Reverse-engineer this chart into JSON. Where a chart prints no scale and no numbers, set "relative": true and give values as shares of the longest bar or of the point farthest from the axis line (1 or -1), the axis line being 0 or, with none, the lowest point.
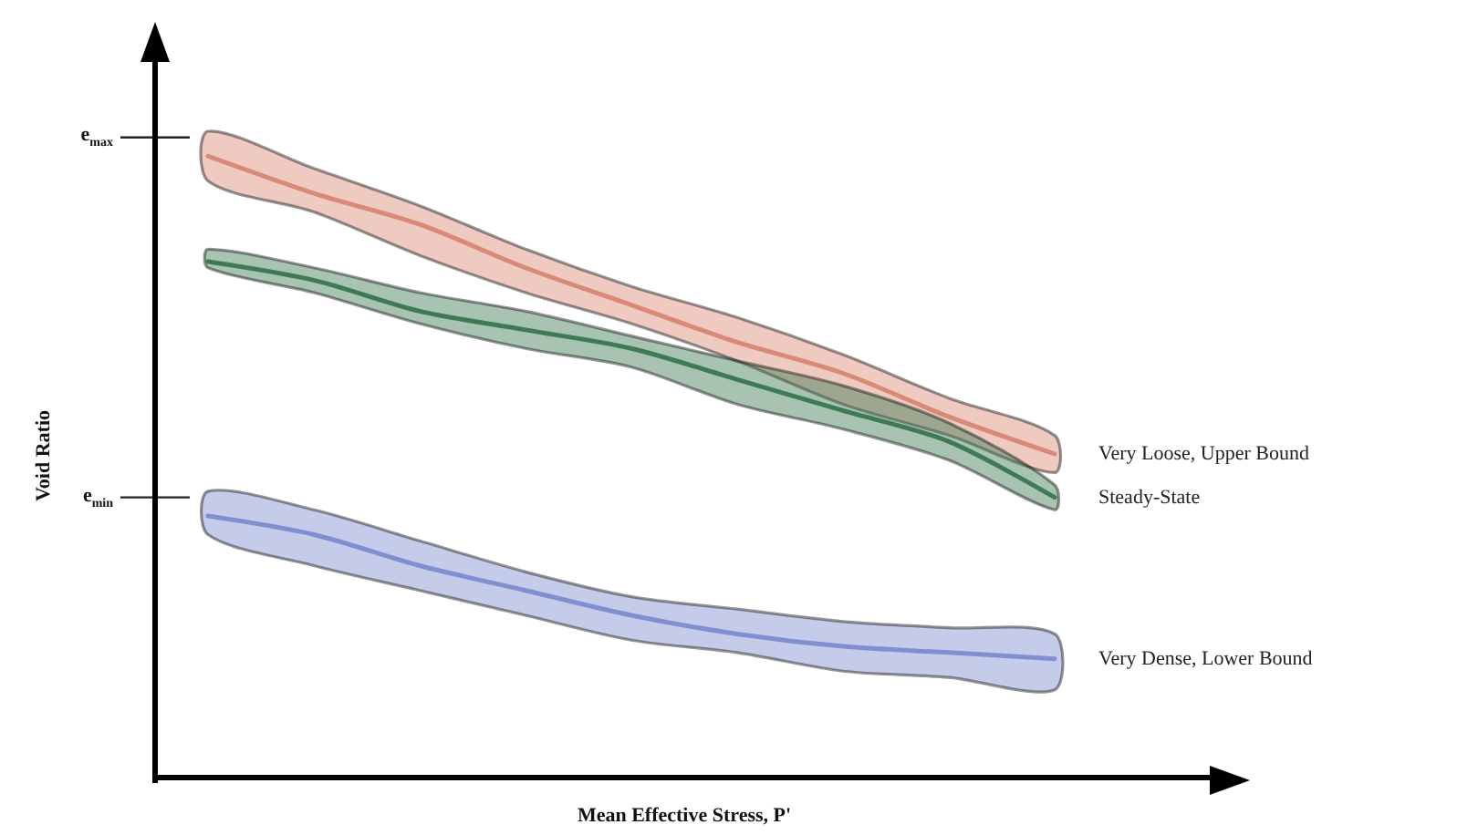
{
  "chart_data": {
    "type": "line",
    "relative": true,
    "xlabel": "Mean Effective Stress, P'",
    "ylabel": "Void Ratio",
    "categories": [
      null,
      null,
      null,
      null,
      null,
      null,
      null,
      null,
      null,
      null
    ],
    "series": [
      {
        "name": "Very Loose, Upper Bound",
        "color": "#d98a76",
        "values": [
          1,
          0.94,
          0.89,
          0.82,
          0.76,
          0.7,
          0.65,
          0.58,
          0.52,
          null
        ],
        "lower": [
          0.96,
          0.91,
          0.84,
          0.78,
          0.73,
          0.67,
          0.6,
          0.55,
          0.49,
          null
        ],
        "upper": [
          1.04,
          0.98,
          0.92,
          0.85,
          0.79,
          0.74,
          0.68,
          0.61,
          0.55,
          null
        ]
      },
      {
        "name": "Steady-State",
        "color": "#3f7a55",
        "values": [
          0.83,
          0.8,
          0.75,
          0.72,
          0.69,
          0.64,
          0.59,
          0.54,
          0.45,
          null
        ],
        "lower": [
          0.82,
          0.78,
          0.73,
          0.69,
          0.66,
          0.6,
          0.56,
          0.51,
          0.43,
          null
        ],
        "upper": [
          0.85,
          0.82,
          0.78,
          0.75,
          0.71,
          0.67,
          0.63,
          0.57,
          0.47,
          null
        ]
      },
      {
        "name": "Very Dense, Lower Bound",
        "color": "#7f8fcf",
        "values": [
          0.42,
          0.39,
          0.34,
          0.3,
          0.26,
          0.23,
          0.21,
          0.2,
          0.19,
          null
        ],
        "lower": [
          0.39,
          0.34,
          0.3,
          0.26,
          0.22,
          0.2,
          0.17,
          0.16,
          0.14,
          null
        ],
        "upper": [
          0.46,
          0.43,
          0.38,
          0.33,
          0.29,
          0.27,
          0.25,
          0.24,
          0.23,
          null
        ]
      }
    ],
    "ref_lines": [
      {
        "axis": "y",
        "value": 1.03,
        "label": "e$_{max}$"
      },
      {
        "axis": "y",
        "value": 0.45,
        "label": "e$_{min}$"
      }
    ],
    "grid": false,
    "legend": false,
    "marker": "none"
  }
}
